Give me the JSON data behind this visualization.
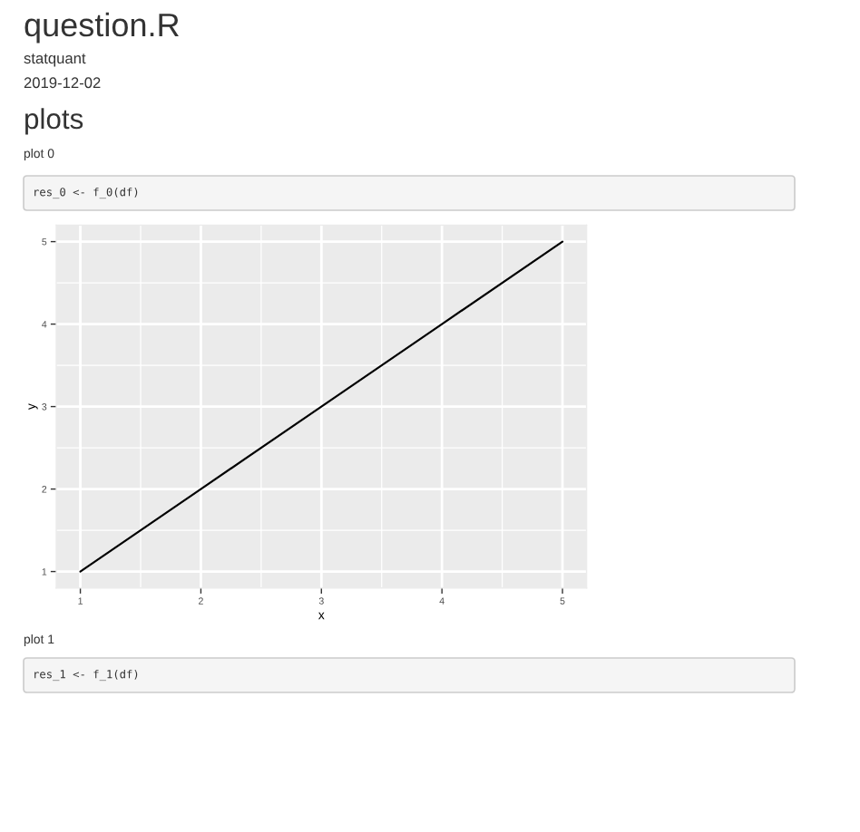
{
  "chart_data": {
    "type": "line",
    "title": "question.R",
    "subtitle": "statquant",
    "annotations": [
      "2019-12-02",
      "plots",
      "plot 0",
      "res_0 <- f_0(df)",
      "plot 1",
      "res_1 <- f_1(df)"
    ],
    "xlabel": "x",
    "ylabel": "y",
    "x": [
      1,
      2,
      3,
      4,
      5
    ],
    "values": [
      1,
      2,
      3,
      4,
      5
    ],
    "color": "#000000",
    "xlim": [
      0.8,
      5.2
    ],
    "ylim": [
      0.8,
      5.2
    ],
    "xticks": [
      1,
      2,
      3,
      4,
      5
    ],
    "yticks": [
      1,
      2,
      3,
      4,
      5
    ],
    "grid": true
  }
}
